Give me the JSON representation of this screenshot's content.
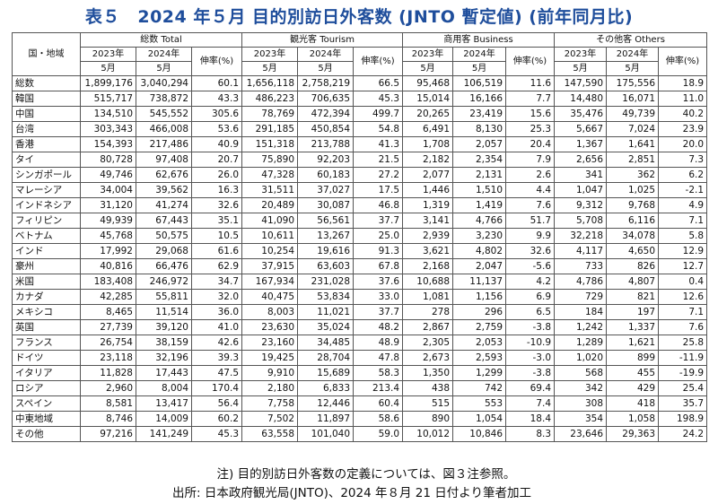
{
  "title": "表５　2024 年５月 目的別訪日外客数 (JNTO 暫定値) (前年同月比)",
  "table": {
    "corner": "国・地域",
    "groups": [
      "総数 Total",
      "観光客 Tourism",
      "商用客 Business",
      "その他客 Others"
    ],
    "year_2023": "2023年",
    "year_2024": "2024年",
    "month": "5月",
    "rate": "伸率(%)",
    "rows": [
      [
        "総数",
        "1,899,176",
        "3,040,294",
        "60.1",
        "1,656,118",
        "2,758,219",
        "66.5",
        "95,468",
        "106,519",
        "11.6",
        "147,590",
        "175,556",
        "18.9"
      ],
      [
        "韓国",
        "515,717",
        "738,872",
        "43.3",
        "486,223",
        "706,635",
        "45.3",
        "15,014",
        "16,166",
        "7.7",
        "14,480",
        "16,071",
        "11.0"
      ],
      [
        "中国",
        "134,510",
        "545,552",
        "305.6",
        "78,769",
        "472,394",
        "499.7",
        "20,265",
        "23,419",
        "15.6",
        "35,476",
        "49,739",
        "40.2"
      ],
      [
        "台湾",
        "303,343",
        "466,008",
        "53.6",
        "291,185",
        "450,854",
        "54.8",
        "6,491",
        "8,130",
        "25.3",
        "5,667",
        "7,024",
        "23.9"
      ],
      [
        "香港",
        "154,393",
        "217,486",
        "40.9",
        "151,318",
        "213,788",
        "41.3",
        "1,708",
        "2,057",
        "20.4",
        "1,367",
        "1,641",
        "20.0"
      ],
      [
        "タイ",
        "80,728",
        "97,408",
        "20.7",
        "75,890",
        "92,203",
        "21.5",
        "2,182",
        "2,354",
        "7.9",
        "2,656",
        "2,851",
        "7.3"
      ],
      [
        "シンガポール",
        "49,746",
        "62,676",
        "26.0",
        "47,328",
        "60,183",
        "27.2",
        "2,077",
        "2,131",
        "2.6",
        "341",
        "362",
        "6.2"
      ],
      [
        "マレーシア",
        "34,004",
        "39,562",
        "16.3",
        "31,511",
        "37,027",
        "17.5",
        "1,446",
        "1,510",
        "4.4",
        "1,047",
        "1,025",
        "-2.1"
      ],
      [
        "インドネシア",
        "31,120",
        "41,274",
        "32.6",
        "20,489",
        "30,087",
        "46.8",
        "1,319",
        "1,419",
        "7.6",
        "9,312",
        "9,768",
        "4.9"
      ],
      [
        "フィリピン",
        "49,939",
        "67,443",
        "35.1",
        "41,090",
        "56,561",
        "37.7",
        "3,141",
        "4,766",
        "51.7",
        "5,708",
        "6,116",
        "7.1"
      ],
      [
        "ベトナム",
        "45,768",
        "50,575",
        "10.5",
        "10,611",
        "13,267",
        "25.0",
        "2,939",
        "3,230",
        "9.9",
        "32,218",
        "34,078",
        "5.8"
      ],
      [
        "インド",
        "17,992",
        "29,068",
        "61.6",
        "10,254",
        "19,616",
        "91.3",
        "3,621",
        "4,802",
        "32.6",
        "4,117",
        "4,650",
        "12.9"
      ],
      [
        "豪州",
        "40,816",
        "66,476",
        "62.9",
        "37,915",
        "63,603",
        "67.8",
        "2,168",
        "2,047",
        "-5.6",
        "733",
        "826",
        "12.7"
      ],
      [
        "米国",
        "183,408",
        "246,972",
        "34.7",
        "167,934",
        "231,028",
        "37.6",
        "10,688",
        "11,137",
        "4.2",
        "4,786",
        "4,807",
        "0.4"
      ],
      [
        "カナダ",
        "42,285",
        "55,811",
        "32.0",
        "40,475",
        "53,834",
        "33.0",
        "1,081",
        "1,156",
        "6.9",
        "729",
        "821",
        "12.6"
      ],
      [
        "メキシコ",
        "8,465",
        "11,514",
        "36.0",
        "8,003",
        "11,021",
        "37.7",
        "278",
        "296",
        "6.5",
        "184",
        "197",
        "7.1"
      ],
      [
        "英国",
        "27,739",
        "39,120",
        "41.0",
        "23,630",
        "35,024",
        "48.2",
        "2,867",
        "2,759",
        "-3.8",
        "1,242",
        "1,337",
        "7.6"
      ],
      [
        "フランス",
        "26,754",
        "38,159",
        "42.6",
        "23,160",
        "34,485",
        "48.9",
        "2,305",
        "2,053",
        "-10.9",
        "1,289",
        "1,621",
        "25.8"
      ],
      [
        "ドイツ",
        "23,118",
        "32,196",
        "39.3",
        "19,425",
        "28,704",
        "47.8",
        "2,673",
        "2,593",
        "-3.0",
        "1,020",
        "899",
        "-11.9"
      ],
      [
        "イタリア",
        "11,828",
        "17,443",
        "47.5",
        "9,910",
        "15,689",
        "58.3",
        "1,350",
        "1,299",
        "-3.8",
        "568",
        "455",
        "-19.9"
      ],
      [
        "ロシア",
        "2,960",
        "8,004",
        "170.4",
        "2,180",
        "6,833",
        "213.4",
        "438",
        "742",
        "69.4",
        "342",
        "429",
        "25.4"
      ],
      [
        "スペイン",
        "8,581",
        "13,417",
        "56.4",
        "7,758",
        "12,446",
        "60.4",
        "515",
        "553",
        "7.4",
        "308",
        "418",
        "35.7"
      ],
      [
        "中東地域",
        "8,746",
        "14,009",
        "60.2",
        "7,502",
        "11,897",
        "58.6",
        "890",
        "1,054",
        "18.4",
        "354",
        "1,058",
        "198.9"
      ],
      [
        "その他",
        "97,216",
        "141,249",
        "45.3",
        "63,558",
        "101,040",
        "59.0",
        "10,012",
        "10,846",
        "8.3",
        "23,646",
        "29,363",
        "24.2"
      ]
    ]
  },
  "note": "注) 目的別訪日外客数の定義については、図３注参照。",
  "source": "出所: 日本政府観光局(JNTO)、2024 年８月 21 日付より筆者加工",
  "colors": {
    "title": "#1f4e9c",
    "border": "#555555"
  }
}
